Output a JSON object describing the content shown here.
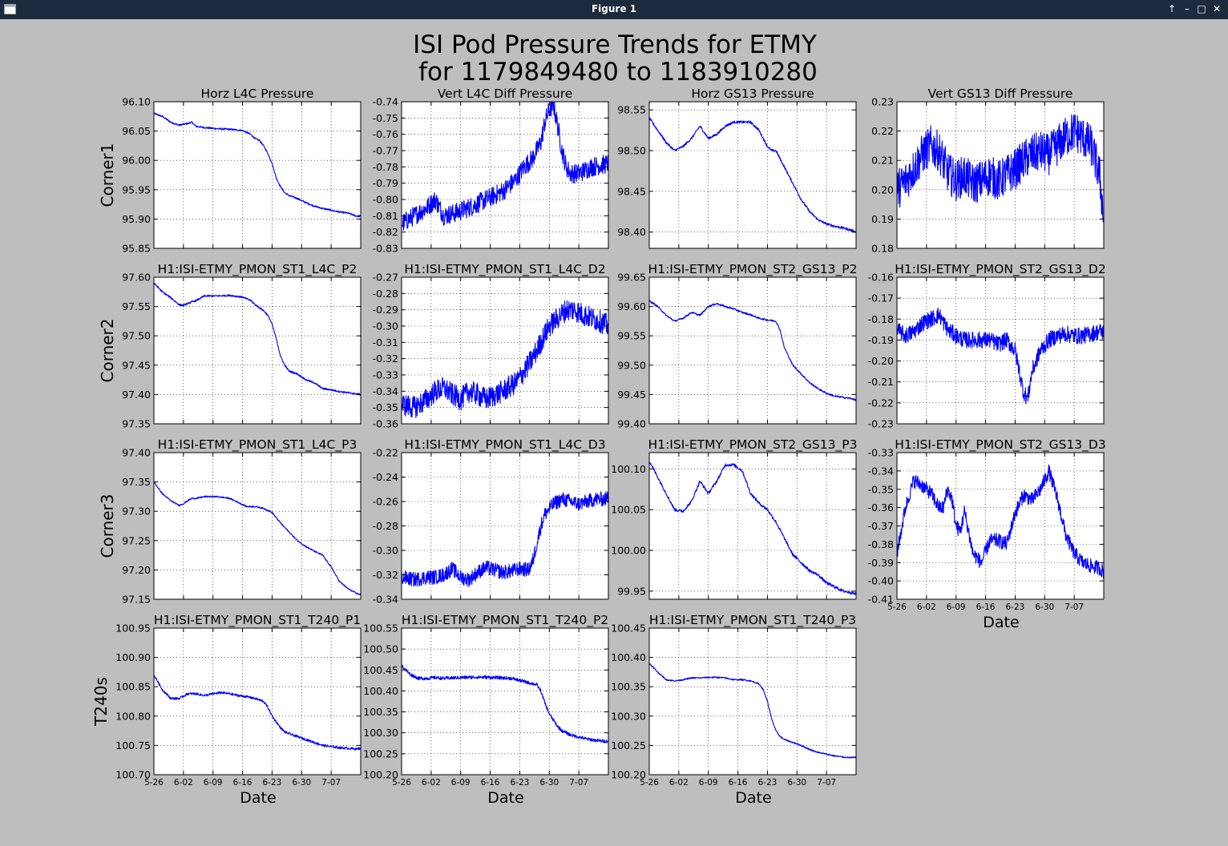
{
  "window": {
    "title": "Figure 1",
    "controls": [
      "↑",
      "–",
      "□",
      "✕"
    ],
    "icon": "window-menu-icon"
  },
  "figure": {
    "suptitle_line1": "ISI Pod Pressure Trends for ETMY",
    "suptitle_line2": "for 1179849480 to 1183910280",
    "row_labels": [
      "Corner1",
      "Corner2",
      "Corner3",
      "T240s"
    ],
    "xlabel": "Date",
    "x_ticks": [
      "5-26",
      "6-02",
      "6-09",
      "6-16",
      "6-23",
      "6-30",
      "7-07"
    ],
    "colors": {
      "line": "#0000ff",
      "background": "#bebebe",
      "axes": "#ffffff",
      "titlebar": "#1c2a3d"
    }
  },
  "chart_data": [
    {
      "type": "line",
      "title": "Horz L4C Pressure",
      "row": 0,
      "col": 0,
      "ylim": [
        95.85,
        96.1
      ],
      "yticks": [
        "96.10",
        "96.05",
        "96.00",
        "95.95",
        "95.90",
        "95.85"
      ],
      "noise": 0.0015,
      "x": [
        0,
        2,
        4,
        6,
        8,
        9,
        10,
        11,
        12,
        15,
        18,
        21,
        23,
        24,
        25,
        26,
        27,
        28,
        29,
        30,
        31,
        32,
        34,
        36,
        38,
        40,
        42,
        44,
        46,
        48,
        49
      ],
      "y": [
        96.08,
        96.075,
        96.065,
        96.06,
        96.063,
        96.065,
        96.058,
        96.057,
        96.056,
        96.054,
        96.053,
        96.051,
        96.044,
        96.037,
        96.034,
        96.025,
        96.012,
        95.995,
        95.97,
        95.955,
        95.945,
        95.94,
        95.935,
        95.928,
        95.922,
        95.918,
        95.915,
        95.912,
        95.91,
        95.905,
        95.905
      ]
    },
    {
      "type": "line",
      "title": "Vert L4C Diff Pressure",
      "row": 0,
      "col": 1,
      "ylim": [
        -0.83,
        -0.74
      ],
      "yticks": [
        "-0.74",
        "-0.75",
        "-0.76",
        "-0.77",
        "-0.78",
        "-0.79",
        "-0.80",
        "-0.81",
        "-0.82",
        "-0.83"
      ],
      "noise": 0.006,
      "x": [
        0,
        3,
        6,
        8,
        10,
        13,
        16,
        20,
        24,
        27,
        29,
        31,
        33,
        34,
        35,
        36,
        37,
        38,
        39,
        40,
        42,
        45,
        49
      ],
      "y": [
        -0.815,
        -0.81,
        -0.805,
        -0.8,
        -0.81,
        -0.808,
        -0.805,
        -0.8,
        -0.795,
        -0.788,
        -0.78,
        -0.775,
        -0.765,
        -0.752,
        -0.745,
        -0.742,
        -0.755,
        -0.77,
        -0.78,
        -0.784,
        -0.784,
        -0.78,
        -0.778
      ]
    },
    {
      "type": "line",
      "title": "Horz GS13 Pressure",
      "row": 0,
      "col": 2,
      "ylim": [
        98.38,
        98.56
      ],
      "yticks": [
        "98.55",
        "98.50",
        "98.45",
        "98.40"
      ],
      "noise": 0.0015,
      "x": [
        0,
        2,
        4,
        6,
        8,
        10,
        12,
        14,
        16,
        18,
        20,
        22,
        24,
        26,
        28,
        29,
        30,
        31,
        32,
        34,
        36,
        38,
        40,
        42,
        44,
        46,
        48,
        49
      ],
      "y": [
        98.54,
        98.525,
        98.51,
        98.5,
        98.505,
        98.515,
        98.53,
        98.515,
        98.52,
        98.53,
        98.535,
        98.535,
        98.535,
        98.525,
        98.505,
        98.5,
        98.5,
        98.49,
        98.48,
        98.46,
        98.44,
        98.425,
        98.415,
        98.41,
        98.407,
        98.405,
        98.402,
        98.4
      ]
    },
    {
      "type": "line",
      "title": "Vert GS13 Diff Pressure",
      "row": 0,
      "col": 3,
      "ylim": [
        0.18,
        0.23
      ],
      "yticks": [
        "0.23",
        "0.22",
        "0.21",
        "0.20",
        "0.19",
        "0.18"
      ],
      "noise": 0.007,
      "x": [
        0,
        2,
        4,
        6,
        8,
        10,
        12,
        14,
        16,
        18,
        20,
        22,
        24,
        26,
        28,
        30,
        32,
        34,
        36,
        38,
        40,
        42,
        44,
        46,
        48,
        49
      ],
      "y": [
        0.2,
        0.203,
        0.207,
        0.212,
        0.215,
        0.213,
        0.206,
        0.203,
        0.205,
        0.202,
        0.203,
        0.205,
        0.203,
        0.205,
        0.207,
        0.21,
        0.212,
        0.213,
        0.212,
        0.215,
        0.218,
        0.22,
        0.218,
        0.215,
        0.205,
        0.19
      ]
    },
    {
      "type": "line",
      "title": "H1:ISI-ETMY_PMON_ST1_L4C_P2",
      "row": 1,
      "col": 0,
      "ylim": [
        97.35,
        97.6
      ],
      "yticks": [
        "97.60",
        "97.55",
        "97.50",
        "97.45",
        "97.40",
        "97.35"
      ],
      "noise": 0.0015,
      "x": [
        0,
        2,
        4,
        6,
        7,
        8,
        9,
        10,
        12,
        15,
        18,
        21,
        23,
        24,
        25,
        26,
        27,
        28,
        29,
        30,
        31,
        32,
        34,
        36,
        38,
        40,
        42,
        44,
        46,
        48,
        49
      ],
      "y": [
        97.59,
        97.575,
        97.565,
        97.553,
        97.552,
        97.555,
        97.558,
        97.56,
        97.568,
        97.568,
        97.569,
        97.566,
        97.56,
        97.553,
        97.548,
        97.543,
        97.535,
        97.52,
        97.495,
        97.465,
        97.45,
        97.44,
        97.435,
        97.425,
        97.42,
        97.41,
        97.408,
        97.405,
        97.403,
        97.401,
        97.4
      ]
    },
    {
      "type": "line",
      "title": "H1:ISI-ETMY_PMON_ST1_L4C_D2",
      "row": 1,
      "col": 1,
      "ylim": [
        -0.36,
        -0.27
      ],
      "yticks": [
        "-0.27",
        "-0.28",
        "-0.29",
        "-0.30",
        "-0.31",
        "-0.32",
        "-0.33",
        "-0.34",
        "-0.35",
        "-0.36"
      ],
      "noise": 0.007,
      "x": [
        0,
        3,
        6,
        8,
        10,
        12,
        14,
        16,
        18,
        20,
        24,
        27,
        29,
        31,
        33,
        35,
        37,
        39,
        41,
        43,
        45,
        47,
        49
      ],
      "y": [
        -0.348,
        -0.35,
        -0.345,
        -0.34,
        -0.338,
        -0.342,
        -0.345,
        -0.34,
        -0.342,
        -0.345,
        -0.34,
        -0.335,
        -0.328,
        -0.32,
        -0.31,
        -0.3,
        -0.295,
        -0.29,
        -0.29,
        -0.293,
        -0.295,
        -0.297,
        -0.3
      ]
    },
    {
      "type": "line",
      "title": "H1:ISI-ETMY_PMON_ST2_GS13_P2",
      "row": 1,
      "col": 2,
      "ylim": [
        99.4,
        99.65
      ],
      "yticks": [
        "99.65",
        "99.60",
        "99.55",
        "99.50",
        "99.45",
        "99.40"
      ],
      "noise": 0.0015,
      "x": [
        0,
        2,
        4,
        6,
        8,
        10,
        12,
        14,
        16,
        18,
        20,
        22,
        24,
        26,
        28,
        30,
        31,
        32,
        34,
        36,
        38,
        40,
        42,
        44,
        46,
        48,
        49
      ],
      "y": [
        99.61,
        99.6,
        99.585,
        99.575,
        99.58,
        99.59,
        99.585,
        99.6,
        99.605,
        99.6,
        99.596,
        99.59,
        99.586,
        99.58,
        99.577,
        99.575,
        99.56,
        99.53,
        99.5,
        99.485,
        99.47,
        99.46,
        99.452,
        99.447,
        99.445,
        99.443,
        99.44
      ]
    },
    {
      "type": "line",
      "title": "H1:ISI-ETMY_PMON_ST2_GS13_D2",
      "row": 1,
      "col": 3,
      "ylim": [
        -0.23,
        -0.16
      ],
      "yticks": [
        "-0.16",
        "-0.17",
        "-0.18",
        "-0.19",
        "-0.20",
        "-0.21",
        "-0.22",
        "-0.23"
      ],
      "noise": 0.004,
      "x": [
        0,
        2,
        4,
        6,
        8,
        10,
        12,
        14,
        16,
        18,
        20,
        22,
        24,
        26,
        28,
        29,
        30,
        31,
        32,
        34,
        36,
        38,
        40,
        42,
        44,
        46,
        48,
        49
      ],
      "y": [
        -0.185,
        -0.188,
        -0.186,
        -0.182,
        -0.18,
        -0.178,
        -0.185,
        -0.188,
        -0.19,
        -0.19,
        -0.19,
        -0.19,
        -0.192,
        -0.19,
        -0.195,
        -0.205,
        -0.215,
        -0.218,
        -0.205,
        -0.195,
        -0.19,
        -0.188,
        -0.187,
        -0.188,
        -0.188,
        -0.187,
        -0.186,
        -0.186
      ]
    },
    {
      "type": "line",
      "title": "H1:ISI-ETMY_PMON_ST1_L4C_P3",
      "row": 2,
      "col": 0,
      "ylim": [
        97.15,
        97.4
      ],
      "yticks": [
        "97.40",
        "97.35",
        "97.30",
        "97.25",
        "97.20",
        "97.15"
      ],
      "noise": 0.0012,
      "x": [
        0,
        2,
        4,
        6,
        7,
        8,
        9,
        10,
        12,
        15,
        18,
        20,
        22,
        24,
        26,
        28,
        30,
        32,
        34,
        36,
        38,
        40,
        42,
        44,
        46,
        48,
        49
      ],
      "y": [
        97.35,
        97.33,
        97.318,
        97.31,
        97.313,
        97.318,
        97.322,
        97.322,
        97.325,
        97.325,
        97.322,
        97.315,
        97.308,
        97.308,
        97.305,
        97.298,
        97.28,
        97.265,
        97.25,
        97.24,
        97.232,
        97.225,
        97.205,
        97.18,
        97.168,
        97.16,
        97.158
      ]
    },
    {
      "type": "line",
      "title": "H1:ISI-ETMY_PMON_ST1_L4C_D3",
      "row": 2,
      "col": 1,
      "ylim": [
        -0.34,
        -0.22
      ],
      "yticks": [
        "-0.22",
        "-0.24",
        "-0.26",
        "-0.28",
        "-0.30",
        "-0.32",
        "-0.34"
      ],
      "noise": 0.006,
      "x": [
        0,
        3,
        6,
        8,
        10,
        12,
        14,
        16,
        18,
        20,
        22,
        24,
        26,
        28,
        30,
        31,
        32,
        33,
        34,
        36,
        38,
        40,
        42,
        44,
        46,
        48,
        49
      ],
      "y": [
        -0.322,
        -0.324,
        -0.322,
        -0.322,
        -0.32,
        -0.315,
        -0.322,
        -0.324,
        -0.318,
        -0.314,
        -0.316,
        -0.318,
        -0.317,
        -0.315,
        -0.316,
        -0.31,
        -0.295,
        -0.28,
        -0.27,
        -0.262,
        -0.258,
        -0.26,
        -0.262,
        -0.26,
        -0.258,
        -0.258,
        -0.257
      ]
    },
    {
      "type": "line",
      "title": "H1:ISI-ETMY_PMON_ST2_GS13_P3",
      "row": 2,
      "col": 2,
      "ylim": [
        99.94,
        100.12
      ],
      "yticks": [
        "100.10",
        "100.05",
        "100.00",
        "99.95"
      ],
      "noise": 0.0018,
      "x": [
        0,
        2,
        4,
        6,
        8,
        10,
        12,
        14,
        16,
        18,
        20,
        22,
        24,
        26,
        28,
        30,
        32,
        34,
        36,
        38,
        40,
        42,
        44,
        46,
        48,
        49
      ],
      "y": [
        100.11,
        100.09,
        100.07,
        100.05,
        100.048,
        100.06,
        100.085,
        100.07,
        100.085,
        100.105,
        100.105,
        100.098,
        100.07,
        100.058,
        100.05,
        100.035,
        100.015,
        99.995,
        99.985,
        99.975,
        99.97,
        99.96,
        99.955,
        99.95,
        99.948,
        99.946
      ]
    },
    {
      "type": "line",
      "title": "H1:ISI-ETMY_PMON_ST2_GS13_D3",
      "row": 2,
      "col": 3,
      "ylim": [
        -0.41,
        -0.33
      ],
      "yticks": [
        "-0.33",
        "-0.34",
        "-0.35",
        "-0.36",
        "-0.37",
        "-0.38",
        "-0.39",
        "-0.40",
        "-0.41"
      ],
      "noise": 0.004,
      "x": [
        0,
        2,
        4,
        6,
        8,
        10,
        11,
        12,
        13,
        14,
        15,
        16,
        18,
        20,
        22,
        24,
        26,
        28,
        30,
        32,
        34,
        36,
        38,
        40,
        42,
        44,
        46,
        48,
        49
      ],
      "y": [
        -0.385,
        -0.36,
        -0.345,
        -0.348,
        -0.352,
        -0.36,
        -0.36,
        -0.35,
        -0.355,
        -0.37,
        -0.373,
        -0.362,
        -0.385,
        -0.39,
        -0.378,
        -0.378,
        -0.38,
        -0.363,
        -0.353,
        -0.356,
        -0.35,
        -0.34,
        -0.355,
        -0.375,
        -0.385,
        -0.39,
        -0.392,
        -0.393,
        -0.395
      ]
    },
    {
      "type": "line",
      "title": "H1:ISI-ETMY_PMON_ST1_T240_P1",
      "row": 3,
      "col": 0,
      "ylim": [
        100.7,
        100.95
      ],
      "yticks": [
        "100.95",
        "100.90",
        "100.85",
        "100.80",
        "100.75",
        "100.70"
      ],
      "noise": 0.002,
      "x": [
        0,
        2,
        4,
        6,
        8,
        10,
        12,
        14,
        16,
        18,
        20,
        22,
        24,
        26,
        27,
        28,
        29,
        30,
        31,
        32,
        34,
        36,
        38,
        40,
        42,
        44,
        46,
        48,
        49
      ],
      "y": [
        100.87,
        100.845,
        100.83,
        100.83,
        100.838,
        100.838,
        100.835,
        100.838,
        100.84,
        100.838,
        100.835,
        100.833,
        100.83,
        100.825,
        100.815,
        100.8,
        100.79,
        100.78,
        100.773,
        100.77,
        100.765,
        100.76,
        100.755,
        100.75,
        100.748,
        100.746,
        100.745,
        100.744,
        100.745
      ]
    },
    {
      "type": "line",
      "title": "H1:ISI-ETMY_PMON_ST1_T240_P2",
      "row": 3,
      "col": 1,
      "ylim": [
        100.2,
        100.55
      ],
      "yticks": [
        "100.55",
        "100.50",
        "100.45",
        "100.40",
        "100.35",
        "100.30",
        "100.25",
        "100.20"
      ],
      "noise": 0.004,
      "x": [
        0,
        2,
        4,
        6,
        8,
        10,
        14,
        18,
        22,
        26,
        30,
        32,
        33,
        34,
        35,
        36,
        37,
        38,
        40,
        42,
        44,
        46,
        48,
        49
      ],
      "y": [
        100.46,
        100.44,
        100.43,
        100.43,
        100.432,
        100.43,
        100.432,
        100.433,
        100.432,
        100.43,
        100.42,
        100.415,
        100.4,
        100.37,
        100.345,
        100.33,
        100.315,
        100.305,
        100.295,
        100.29,
        100.285,
        100.282,
        100.28,
        100.28
      ]
    },
    {
      "type": "line",
      "title": "H1:ISI-ETMY_PMON_ST1_T240_P3",
      "row": 3,
      "col": 2,
      "ylim": [
        100.2,
        100.45
      ],
      "yticks": [
        "100.45",
        "100.40",
        "100.35",
        "100.30",
        "100.25",
        "100.20"
      ],
      "noise": 0.0012,
      "x": [
        0,
        2,
        4,
        6,
        8,
        10,
        12,
        14,
        16,
        18,
        20,
        22,
        24,
        26,
        27,
        28,
        29,
        30,
        31,
        32,
        34,
        36,
        38,
        40,
        42,
        44,
        46,
        48,
        49
      ],
      "y": [
        100.39,
        100.375,
        100.362,
        100.36,
        100.362,
        100.365,
        100.365,
        100.366,
        100.366,
        100.365,
        100.362,
        100.362,
        100.36,
        100.355,
        100.345,
        100.325,
        100.295,
        100.275,
        100.265,
        100.26,
        100.255,
        100.25,
        100.243,
        100.238,
        100.235,
        100.232,
        100.23,
        100.229,
        100.23
      ]
    }
  ]
}
